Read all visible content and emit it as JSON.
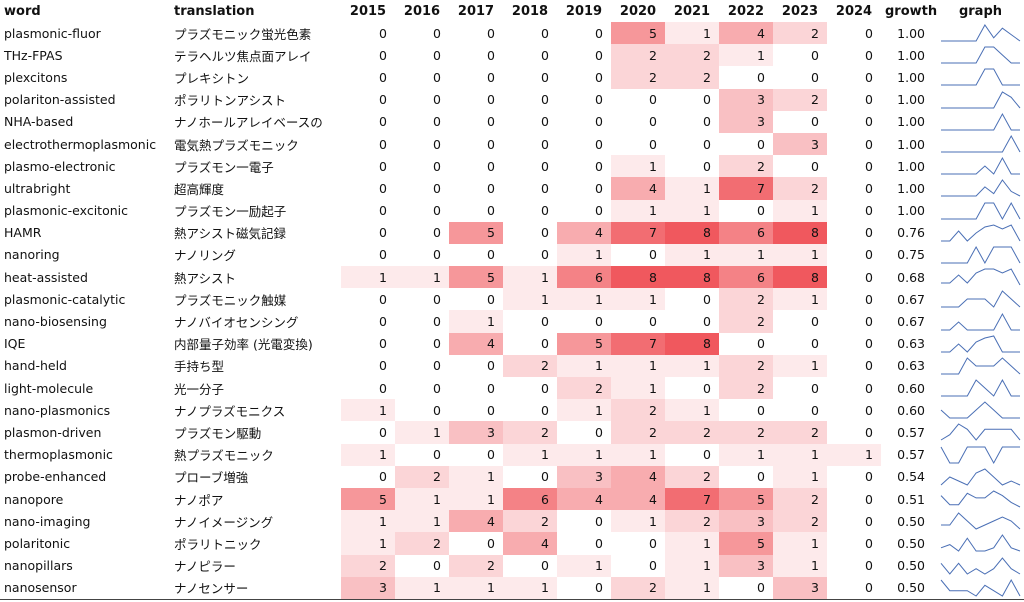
{
  "columns": {
    "word": "word",
    "translation": "translation",
    "years": [
      "2015",
      "2016",
      "2017",
      "2018",
      "2019",
      "2020",
      "2021",
      "2022",
      "2023",
      "2024"
    ],
    "growth": "growth",
    "graph": "graph"
  },
  "heat_color": "#f0585e",
  "sparkline_color": "#4a6fb5",
  "rows": [
    {
      "word": "plasmonic-fluor",
      "translation": "プラズモニック蛍光色素",
      "counts": [
        0,
        0,
        0,
        0,
        0,
        5,
        1,
        4,
        2,
        0
      ],
      "growth": "1.00"
    },
    {
      "word": "THz-FPAS",
      "translation": "テラヘルツ焦点面アレイ",
      "counts": [
        0,
        0,
        0,
        0,
        0,
        2,
        2,
        1,
        0,
        0
      ],
      "growth": "1.00"
    },
    {
      "word": "plexcitons",
      "translation": "プレキシトン",
      "counts": [
        0,
        0,
        0,
        0,
        0,
        2,
        2,
        0,
        0,
        0
      ],
      "growth": "1.00"
    },
    {
      "word": "polariton-assisted",
      "translation": "ポラリトンアシスト",
      "counts": [
        0,
        0,
        0,
        0,
        0,
        0,
        0,
        3,
        2,
        0
      ],
      "growth": "1.00"
    },
    {
      "word": "NHA-based",
      "translation": "ナノホールアレイベースの",
      "counts": [
        0,
        0,
        0,
        0,
        0,
        0,
        0,
        3,
        0,
        0
      ],
      "growth": "1.00"
    },
    {
      "word": "electrothermoplasmonic",
      "translation": "電気熱プラズモニック",
      "counts": [
        0,
        0,
        0,
        0,
        0,
        0,
        0,
        0,
        3,
        0
      ],
      "growth": "1.00"
    },
    {
      "word": "plasmo-electronic",
      "translation": "プラズモン一電子",
      "counts": [
        0,
        0,
        0,
        0,
        0,
        1,
        0,
        2,
        0,
        0
      ],
      "growth": "1.00"
    },
    {
      "word": "ultrabright",
      "translation": "超高輝度",
      "counts": [
        0,
        0,
        0,
        0,
        0,
        4,
        1,
        7,
        2,
        0
      ],
      "growth": "1.00"
    },
    {
      "word": "plasmonic-excitonic",
      "translation": "プラズモン一励起子",
      "counts": [
        0,
        0,
        0,
        0,
        0,
        1,
        1,
        0,
        1,
        0
      ],
      "growth": "1.00"
    },
    {
      "word": "HAMR",
      "translation": "熱アシスト磁気記録",
      "counts": [
        0,
        0,
        5,
        0,
        4,
        7,
        8,
        6,
        8,
        0
      ],
      "growth": "0.76"
    },
    {
      "word": "nanoring",
      "translation": "ナノリング",
      "counts": [
        0,
        0,
        0,
        0,
        1,
        0,
        1,
        1,
        1,
        0
      ],
      "growth": "0.75"
    },
    {
      "word": "heat-assisted",
      "translation": "熱アシスト",
      "counts": [
        1,
        1,
        5,
        1,
        6,
        8,
        8,
        6,
        8,
        0
      ],
      "growth": "0.68"
    },
    {
      "word": "plasmonic-catalytic",
      "translation": "プラズモニック触媒",
      "counts": [
        0,
        0,
        0,
        1,
        1,
        1,
        0,
        2,
        1,
        0
      ],
      "growth": "0.67"
    },
    {
      "word": "nano-biosensing",
      "translation": "ナノバイオセンシング",
      "counts": [
        0,
        0,
        1,
        0,
        0,
        0,
        0,
        2,
        0,
        0
      ],
      "growth": "0.67"
    },
    {
      "word": "IQE",
      "translation": "内部量子効率 (光電変換)",
      "counts": [
        0,
        0,
        4,
        0,
        5,
        7,
        8,
        0,
        0,
        0
      ],
      "growth": "0.63"
    },
    {
      "word": "hand-held",
      "translation": "手持ち型",
      "counts": [
        0,
        0,
        0,
        2,
        1,
        1,
        1,
        2,
        1,
        0
      ],
      "growth": "0.63"
    },
    {
      "word": "light-molecule",
      "translation": "光一分子",
      "counts": [
        0,
        0,
        0,
        0,
        2,
        1,
        0,
        2,
        0,
        0
      ],
      "growth": "0.60"
    },
    {
      "word": "nano-plasmonics",
      "translation": "ナノプラズモニクス",
      "counts": [
        1,
        0,
        0,
        0,
        1,
        2,
        1,
        0,
        0,
        0
      ],
      "growth": "0.60"
    },
    {
      "word": "plasmon-driven",
      "translation": "プラズモン駆動",
      "counts": [
        0,
        1,
        3,
        2,
        0,
        2,
        2,
        2,
        2,
        0
      ],
      "growth": "0.57"
    },
    {
      "word": "thermoplasmonic",
      "translation": "熱プラズモニック",
      "counts": [
        1,
        0,
        0,
        1,
        1,
        1,
        0,
        1,
        1,
        1
      ],
      "growth": "0.57"
    },
    {
      "word": "probe-enhanced",
      "translation": "プローブ増強",
      "counts": [
        0,
        2,
        1,
        0,
        3,
        4,
        2,
        0,
        1,
        0
      ],
      "growth": "0.54"
    },
    {
      "word": "nanopore",
      "translation": "ナノポア",
      "counts": [
        5,
        1,
        1,
        6,
        4,
        4,
        7,
        5,
        2,
        0
      ],
      "growth": "0.51"
    },
    {
      "word": "nano-imaging",
      "translation": "ナノイメージング",
      "counts": [
        1,
        1,
        4,
        2,
        0,
        1,
        2,
        3,
        2,
        0
      ],
      "growth": "0.50"
    },
    {
      "word": "polaritonic",
      "translation": "ポラリトニック",
      "counts": [
        1,
        2,
        0,
        4,
        0,
        0,
        1,
        5,
        1,
        0
      ],
      "growth": "0.50"
    },
    {
      "word": "nanopillars",
      "translation": "ナノピラー",
      "counts": [
        2,
        0,
        2,
        0,
        1,
        0,
        1,
        3,
        1,
        0
      ],
      "growth": "0.50"
    },
    {
      "word": "nanosensor",
      "translation": "ナノセンサー",
      "counts": [
        3,
        1,
        1,
        1,
        0,
        2,
        1,
        0,
        3,
        0
      ],
      "growth": "0.50"
    }
  ]
}
